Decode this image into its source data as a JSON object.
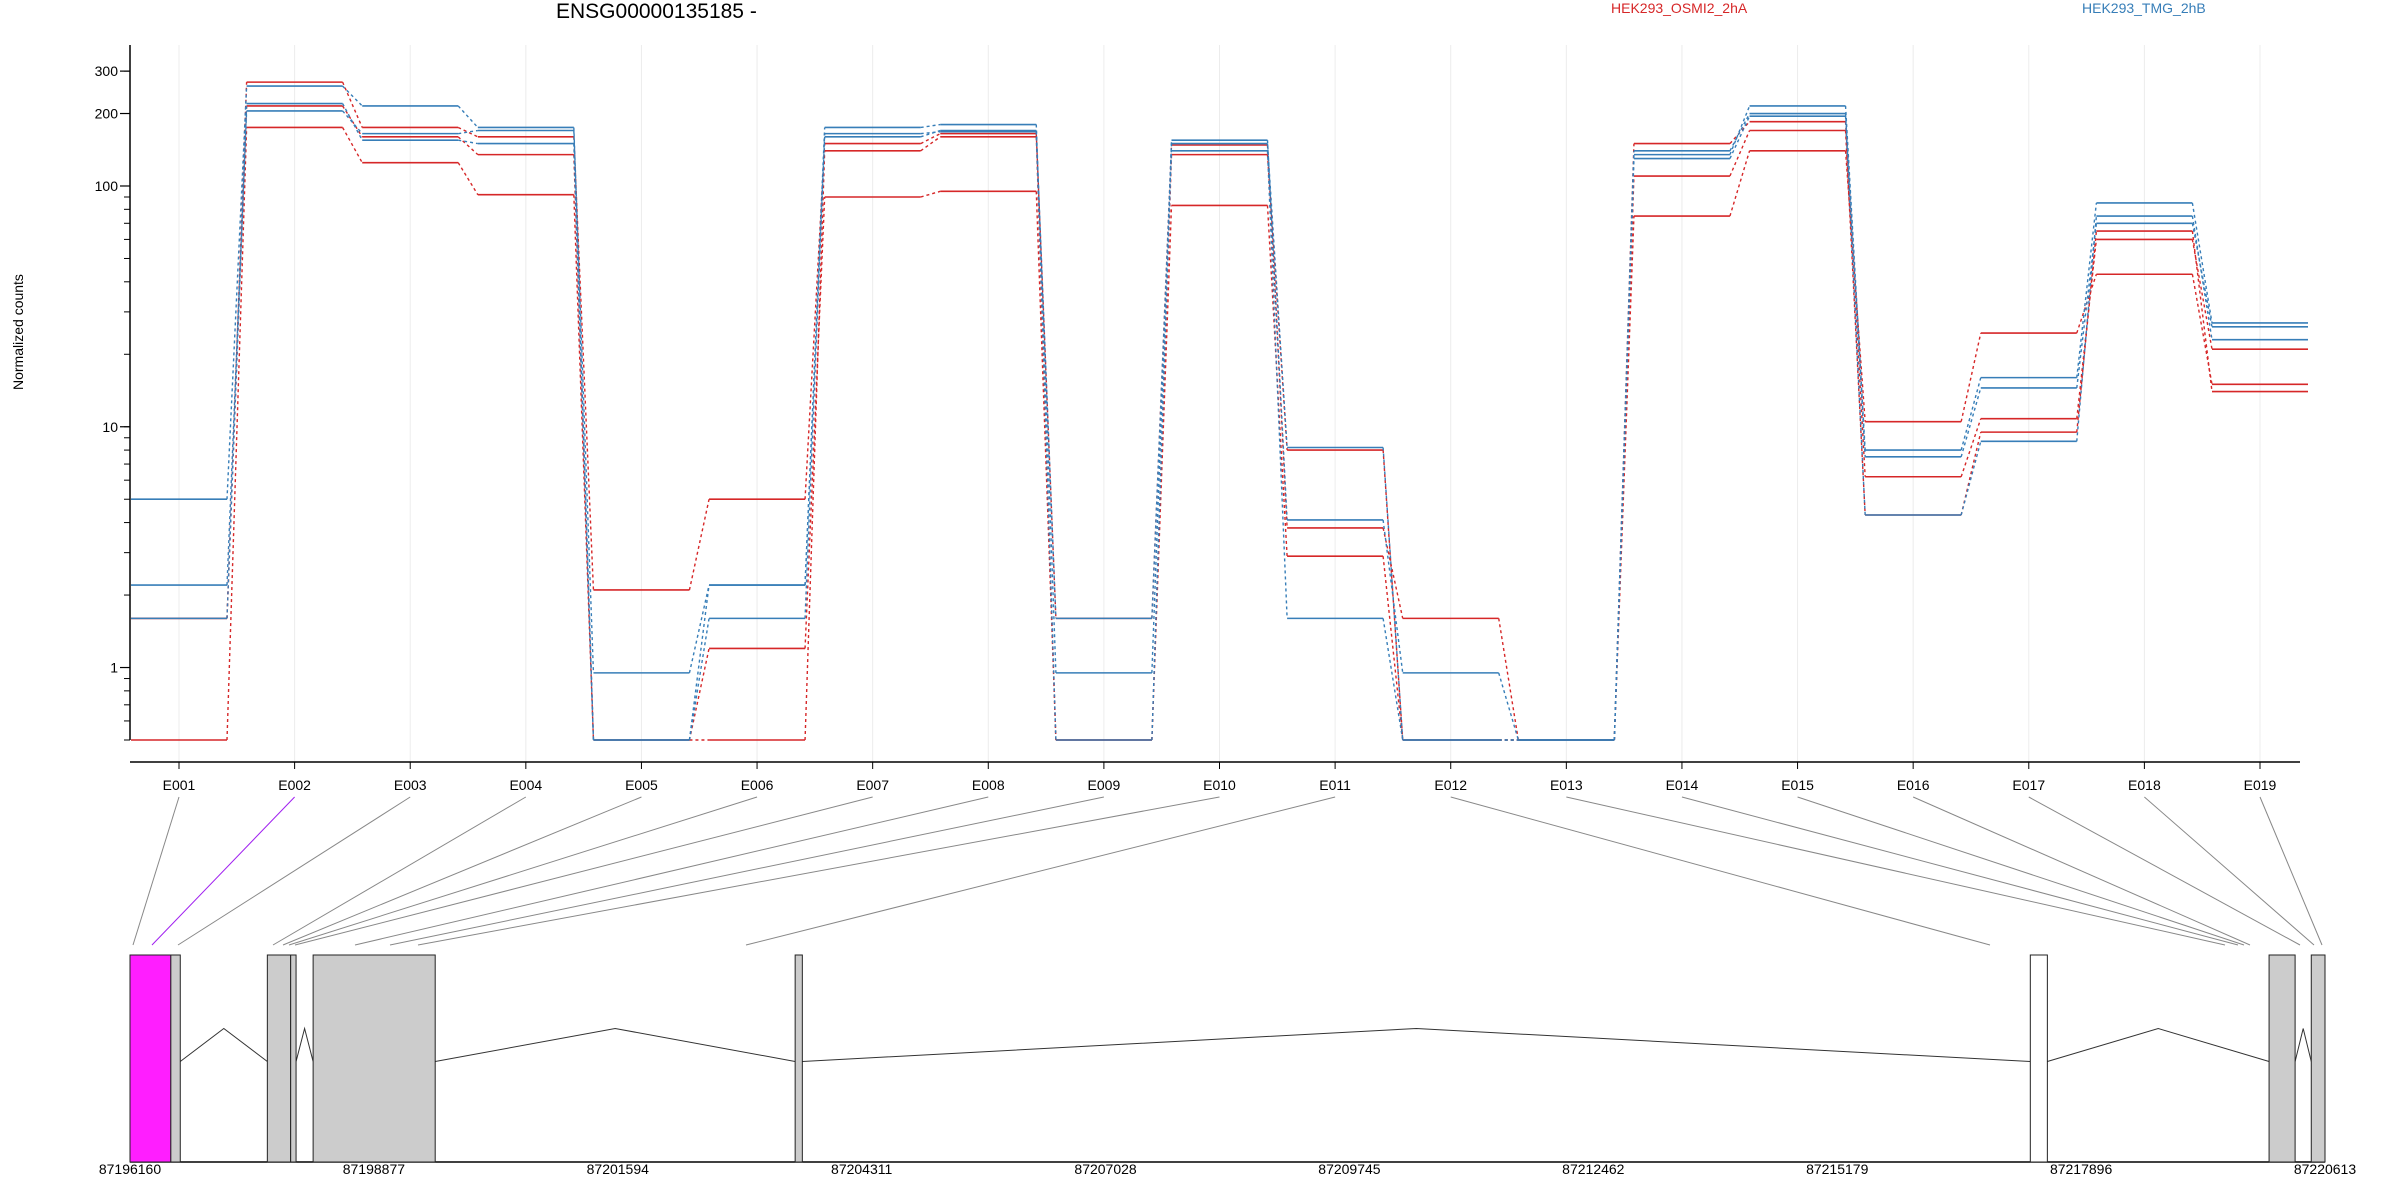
{
  "chart_data": {
    "type": "line",
    "title": "ENSG00000135185 -",
    "ylabel": "Normalized counts",
    "xlabel": "",
    "yscale": "log",
    "ylim": [
      0.5,
      350
    ],
    "grid": "vertical",
    "legend_placement": "top",
    "y_ticks": [
      1,
      10,
      100,
      200,
      300
    ],
    "categories": [
      "E001",
      "E002",
      "E003",
      "E004",
      "E005",
      "E006",
      "E007",
      "E008",
      "E009",
      "E010",
      "E011",
      "E012",
      "E013",
      "E014",
      "E015",
      "E016",
      "E017",
      "E018",
      "E019"
    ],
    "series": [
      {
        "name": "HEK293_OSMI2_2hA",
        "color": "#d62728",
        "values": [
          1.6,
          270,
          175,
          160,
          2.1,
          5.0,
          150,
          165,
          1.6,
          148,
          3.8,
          1.6,
          0.5,
          150,
          185,
          6.2,
          10.8,
          60,
          21
        ]
      },
      {
        "name": "",
        "color": "#d62728",
        "values": [
          0.5,
          175,
          125,
          92,
          0.5,
          1.2,
          90,
          95,
          0.5,
          83,
          2.9,
          0.5,
          0.5,
          75,
          140,
          10.5,
          24.5,
          43,
          15
        ]
      },
      {
        "name": "",
        "color": "#d62728",
        "values": [
          1.6,
          215,
          160,
          135,
          0.5,
          0.5,
          140,
          160,
          0.5,
          135,
          8.0,
          0.5,
          0.5,
          110,
          170,
          4.3,
          9.5,
          65,
          14
        ]
      },
      {
        "name": "HEK293_TMG_2hB",
        "color": "#377eb8",
        "values": [
          5.0,
          260,
          215,
          175,
          0.95,
          2.2,
          175,
          180,
          0.95,
          155,
          4.1,
          0.95,
          0.5,
          135,
          215,
          8.0,
          16,
          85,
          27
        ]
      },
      {
        "name": "",
        "color": "#377eb8",
        "values": [
          2.2,
          205,
          165,
          170,
          0.5,
          1.6,
          160,
          170,
          0.5,
          150,
          8.2,
          0.5,
          0.5,
          130,
          195,
          4.3,
          8.7,
          75,
          23
        ]
      },
      {
        "name": "",
        "color": "#377eb8",
        "values": [
          1.6,
          220,
          155,
          150,
          0.5,
          2.2,
          165,
          168,
          1.6,
          140,
          1.6,
          0.5,
          0.5,
          140,
          200,
          7.5,
          14.5,
          70,
          26
        ]
      }
    ],
    "legend": [
      {
        "label": "HEK293_OSMI2_2hA",
        "color": "#d62728"
      },
      {
        "label": "HEK293_TMG_2hB",
        "color": "#377eb8"
      }
    ],
    "genomic_axis": {
      "ticks": [
        "87196160",
        "87198877",
        "87201594",
        "87204311",
        "87207028",
        "87209745",
        "87212462",
        "87215179",
        "87217896",
        "87220613"
      ],
      "range": [
        87196160,
        87220613
      ],
      "exon_blocks": [
        {
          "start": 87196160,
          "end": 87196615,
          "color": "#ff1eff"
        },
        {
          "start": 87196615,
          "end": 87196720,
          "color": "#cccccc"
        },
        {
          "start": 87197690,
          "end": 87197950,
          "color": "#cccccc"
        },
        {
          "start": 87197950,
          "end": 87198010,
          "color": "#cccccc"
        },
        {
          "start": 87198200,
          "end": 87199560,
          "color": "#cccccc"
        },
        {
          "start": 87203570,
          "end": 87203650,
          "color": "#cccccc"
        },
        {
          "start": 87217330,
          "end": 87217520,
          "color": "#ffffff"
        },
        {
          "start": 87219990,
          "end": 87220280,
          "color": "#cccccc"
        },
        {
          "start": 87220460,
          "end": 87220613,
          "color": "#cccccc"
        }
      ]
    }
  }
}
